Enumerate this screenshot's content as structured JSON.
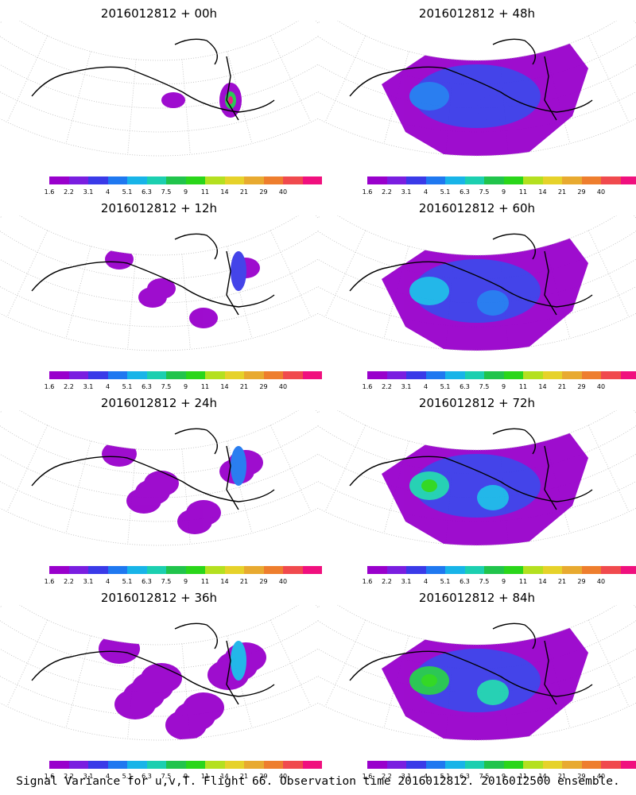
{
  "panels": [
    {
      "title": "2016012812 + 00h",
      "level": 0
    },
    {
      "title": "2016012812 + 48h",
      "level": 4
    },
    {
      "title": "2016012812 + 12h",
      "level": 1
    },
    {
      "title": "2016012812 + 60h",
      "level": 5
    },
    {
      "title": "2016012812 + 24h",
      "level": 2
    },
    {
      "title": "2016012812 + 72h",
      "level": 6
    },
    {
      "title": "2016012812 + 36h",
      "level": 3
    },
    {
      "title": "2016012812 + 84h",
      "level": 7
    }
  ],
  "colorbar": {
    "colors": [
      "#9900cc",
      "#7a1ee0",
      "#3a3ae8",
      "#1f78f0",
      "#18b4e8",
      "#1ccfb0",
      "#21c44c",
      "#2ad61a",
      "#b4e020",
      "#e6d22a",
      "#e8aa30",
      "#ee7e2e",
      "#f04a4e",
      "#f0107e"
    ],
    "labels": [
      "1.6",
      "2.2",
      "3.1",
      "4",
      "5.1",
      "6.3",
      "7.5",
      "9",
      "11",
      "14",
      "21",
      "29",
      "40"
    ]
  },
  "footer": "Signal Variance for u,v,T. Flight 66. Observation time 2016012812. 2016012500 ensemble."
}
